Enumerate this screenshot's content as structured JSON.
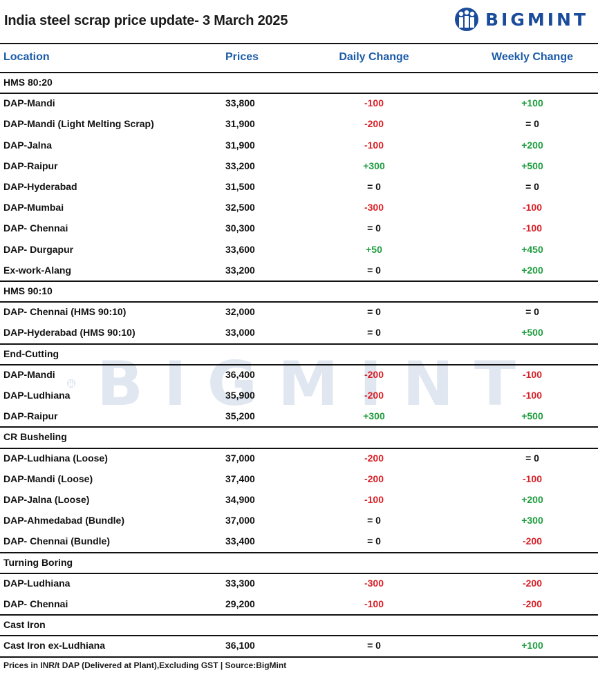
{
  "title": "India steel scrap price update- 3 March 2025",
  "brand": {
    "name": "BIGMINT",
    "color": "#1b4b9b"
  },
  "colors": {
    "header": "#1b5ba8",
    "up": "#1f9d3e",
    "down": "#d91f26"
  },
  "columns": {
    "location": "Location",
    "prices": "Prices",
    "daily": "Daily Change",
    "weekly": "Weekly Change"
  },
  "sections": [
    {
      "name": "HMS 80:20",
      "rows": [
        {
          "location": "DAP-Mandi",
          "price": "33,800",
          "daily": "-100",
          "weekly": "+100"
        },
        {
          "location": "DAP-Mandi (Light Melting Scrap)",
          "price": "31,900",
          "daily": "-200",
          "weekly": "= 0"
        },
        {
          "location": "DAP-Jalna",
          "price": "31,900",
          "daily": "-100",
          "weekly": "+200"
        },
        {
          "location": "DAP-Raipur",
          "price": "33,200",
          "daily": "+300",
          "weekly": "+500"
        },
        {
          "location": "DAP-Hyderabad",
          "price": "31,500",
          "daily": "= 0",
          "weekly": "= 0"
        },
        {
          "location": "DAP-Mumbai",
          "price": "32,500",
          "daily": "-300",
          "weekly": "-100"
        },
        {
          "location": "DAP- Chennai",
          "price": "30,300",
          "daily": "= 0",
          "weekly": "-100"
        },
        {
          "location": "DAP- Durgapur",
          "price": "33,600",
          "daily": "+50",
          "weekly": "+450"
        },
        {
          "location": "Ex-work-Alang",
          "price": "33,200",
          "daily": "= 0",
          "weekly": "+200"
        }
      ]
    },
    {
      "name": "HMS 90:10",
      "rows": [
        {
          "location": "DAP- Chennai  (HMS 90:10)",
          "price": "32,000",
          "daily": "= 0",
          "weekly": "= 0"
        },
        {
          "location": "DAP-Hyderabad (HMS 90:10)",
          "price": "33,000",
          "daily": "= 0",
          "weekly": "+500"
        }
      ]
    },
    {
      "name": "End-Cutting",
      "rows": [
        {
          "location": "DAP-Mandi",
          "price": "36,400",
          "daily": "-200",
          "weekly": "-100"
        },
        {
          "location": "DAP-Ludhiana",
          "price": "35,900",
          "daily": "-200",
          "weekly": "-100"
        },
        {
          "location": "DAP-Raipur",
          "price": "35,200",
          "daily": "+300",
          "weekly": "+500"
        }
      ]
    },
    {
      "name": "CR Busheling",
      "rows": [
        {
          "location": "DAP-Ludhiana (Loose)",
          "price": "37,000",
          "daily": "-200",
          "weekly": "= 0"
        },
        {
          "location": "DAP-Mandi (Loose)",
          "price": "37,400",
          "daily": "-200",
          "weekly": "-100"
        },
        {
          "location": "DAP-Jalna (Loose)",
          "price": "34,900",
          "daily": "-100",
          "weekly": "+200"
        },
        {
          "location": "DAP-Ahmedabad (Bundle)",
          "price": "37,000",
          "daily": "= 0",
          "weekly": "+300"
        },
        {
          "location": "DAP- Chennai (Bundle)",
          "price": "33,400",
          "daily": "= 0",
          "weekly": "-200"
        }
      ]
    },
    {
      "name": "Turning Boring",
      "rows": [
        {
          "location": "DAP-Ludhiana",
          "price": "33,300",
          "daily": "-300",
          "weekly": "-200"
        },
        {
          "location": "DAP- Chennai",
          "price": "29,200",
          "daily": "-100",
          "weekly": "-200"
        }
      ]
    },
    {
      "name": "Cast Iron",
      "rows": [
        {
          "location": "Cast Iron ex-Ludhiana",
          "price": "36,100",
          "daily": "= 0",
          "weekly": "+100"
        }
      ]
    }
  ],
  "footer": "Prices in INR/t DAP (Delivered at Plant),Excluding GST | Source:BigMint"
}
